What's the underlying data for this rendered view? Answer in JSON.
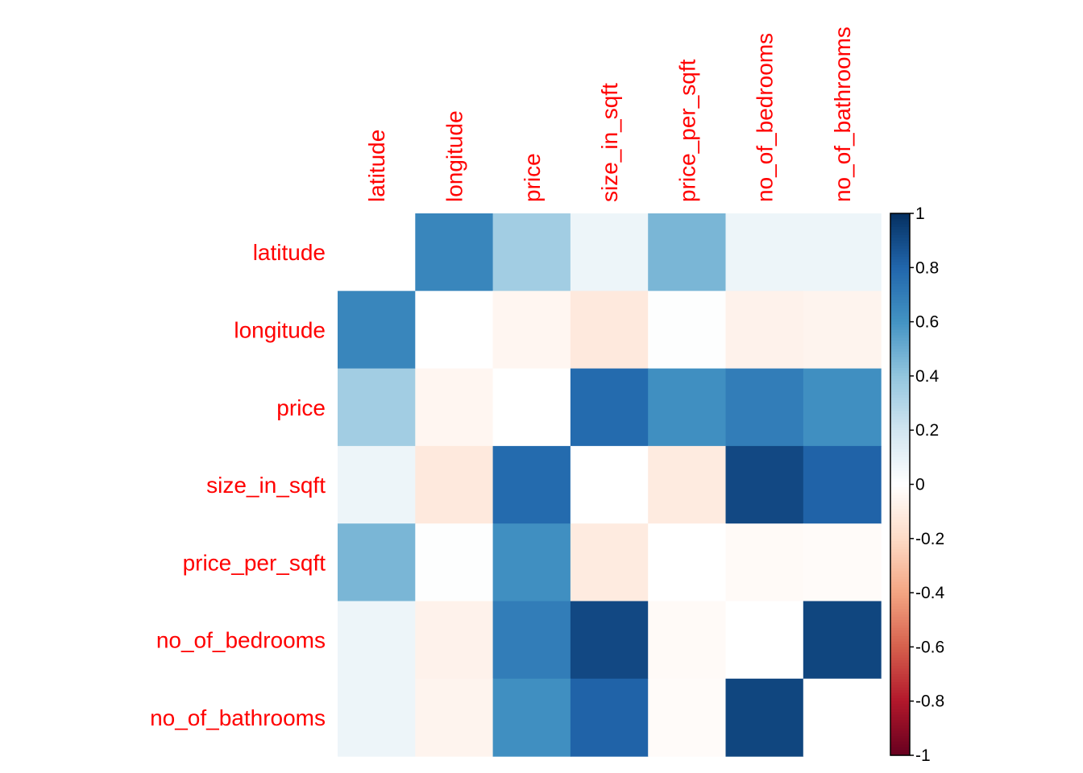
{
  "chart_data": {
    "type": "heatmap",
    "title": "",
    "variables": [
      "latitude",
      "longitude",
      "price",
      "size_in_sqft",
      "price_per_sqft",
      "no_of_bedrooms",
      "no_of_bathrooms"
    ],
    "matrix": [
      [
        null,
        0.66,
        0.35,
        0.08,
        0.46,
        0.08,
        0.08
      ],
      [
        0.66,
        null,
        -0.05,
        -0.12,
        0.01,
        -0.07,
        -0.06
      ],
      [
        0.35,
        -0.05,
        null,
        0.78,
        0.62,
        0.7,
        0.62
      ],
      [
        0.08,
        -0.12,
        0.78,
        null,
        -0.11,
        0.91,
        0.81
      ],
      [
        0.46,
        0.01,
        0.62,
        -0.11,
        null,
        -0.03,
        -0.02
      ],
      [
        0.08,
        -0.07,
        0.7,
        0.91,
        -0.03,
        null,
        0.92
      ],
      [
        0.08,
        -0.06,
        0.62,
        0.81,
        -0.02,
        0.92,
        null
      ]
    ],
    "color_scale": {
      "min": -1,
      "max": 1,
      "stops": [
        {
          "value": -1.0,
          "color": "#67001f"
        },
        {
          "value": -0.8,
          "color": "#b2182b"
        },
        {
          "value": -0.6,
          "color": "#d6604d"
        },
        {
          "value": -0.4,
          "color": "#f4a582"
        },
        {
          "value": -0.2,
          "color": "#fddbc7"
        },
        {
          "value": 0.0,
          "color": "#ffffff"
        },
        {
          "value": 0.2,
          "color": "#d1e5f0"
        },
        {
          "value": 0.4,
          "color": "#92c5de"
        },
        {
          "value": 0.6,
          "color": "#4393c3"
        },
        {
          "value": 0.8,
          "color": "#2166ac"
        },
        {
          "value": 1.0,
          "color": "#053061"
        }
      ],
      "tick_labels": [
        "1",
        "0.8",
        "0.6",
        "0.4",
        "0.2",
        "0",
        "-0.2",
        "-0.4",
        "-0.6",
        "-0.8",
        "-1"
      ],
      "tick_values": [
        1,
        0.8,
        0.6,
        0.4,
        0.2,
        0,
        -0.2,
        -0.4,
        -0.6,
        -0.8,
        -1
      ]
    },
    "label_color": "#ff0000",
    "diagonal_shown": false,
    "legend_position": "right"
  }
}
